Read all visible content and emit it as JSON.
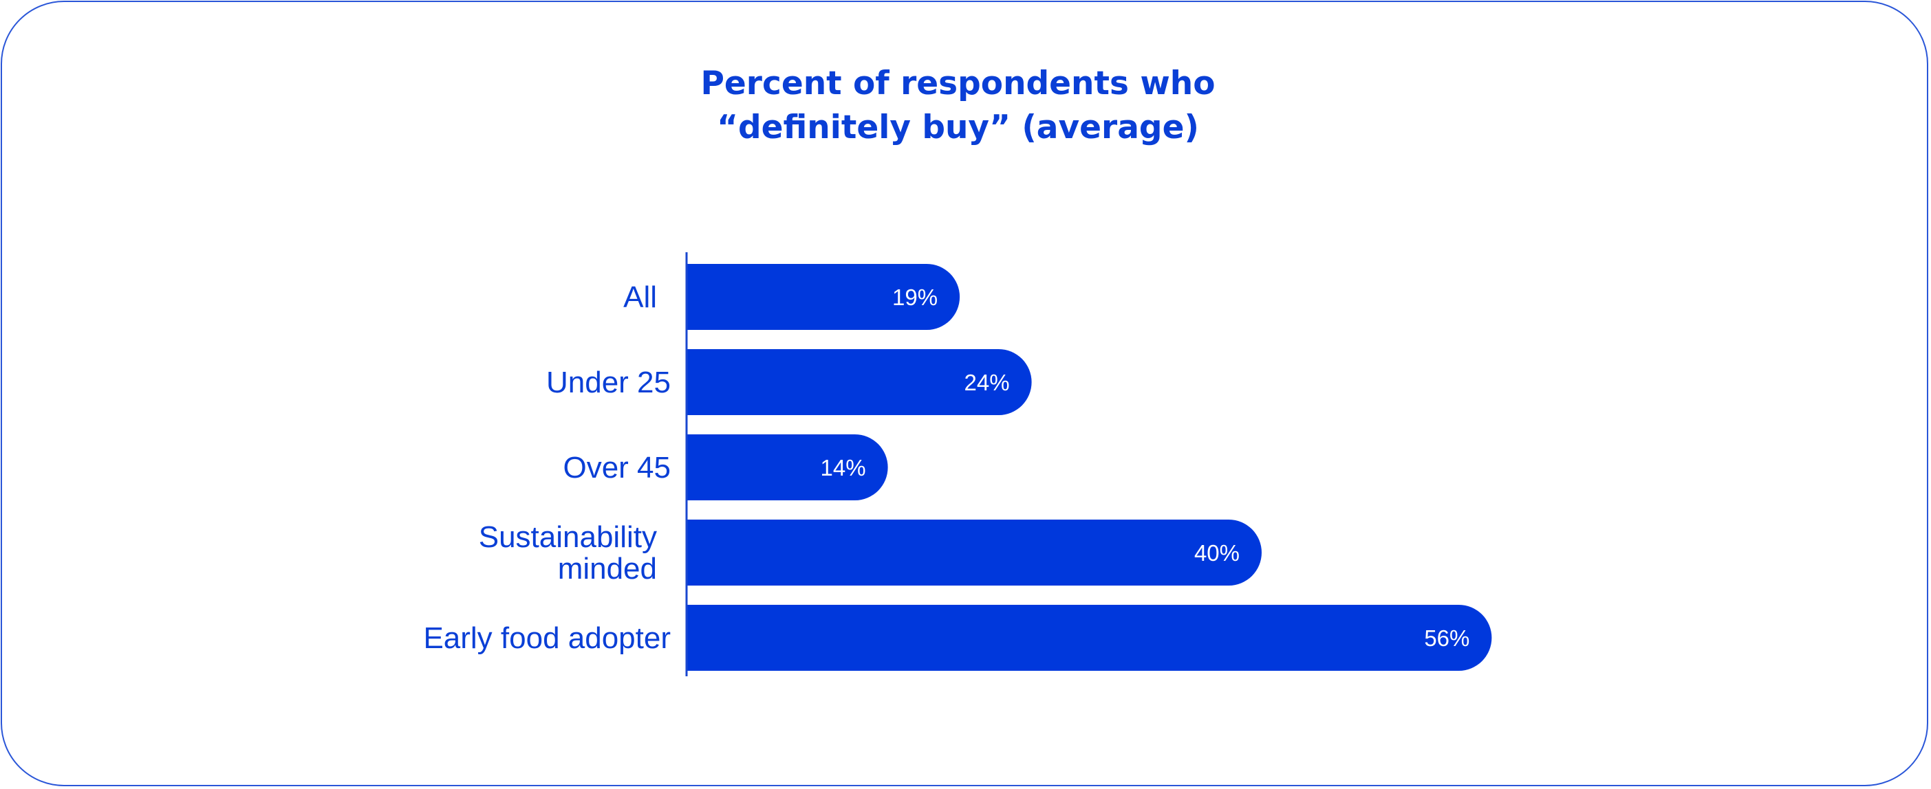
{
  "chart_data": {
    "type": "bar",
    "orientation": "horizontal",
    "title_lines": [
      "Percent of respondents who",
      "“definitely buy” (average)"
    ],
    "categories": [
      [
        "All"
      ],
      [
        "Under 25"
      ],
      [
        "Over 45"
      ],
      [
        "Sustainability",
        "minded"
      ],
      [
        "Early food adopter"
      ]
    ],
    "values": [
      19,
      24,
      14,
      40,
      56
    ],
    "value_labels": [
      "19%",
      "24%",
      "14%",
      "40%",
      "56%"
    ],
    "xlabel": "",
    "ylabel": "",
    "xlim": [
      0,
      56
    ],
    "grid": false,
    "legend": "none",
    "colors": {
      "bar": "#0038dc",
      "text": "#0a3fd6",
      "value_text": "#ffffff",
      "axis": "#1a47cf",
      "border": "#2a56d8"
    }
  }
}
